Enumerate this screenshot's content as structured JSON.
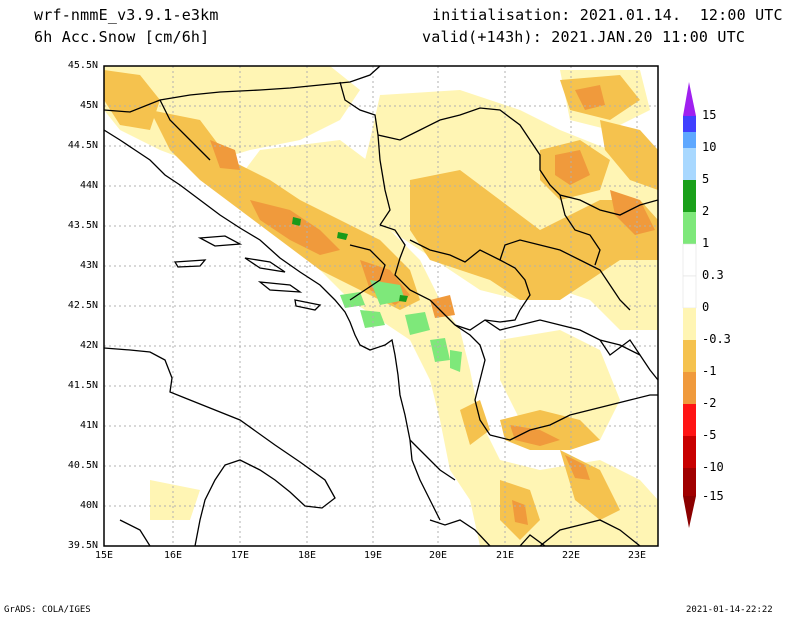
{
  "header": {
    "model": "wrf-nmmE_v3.9.1-e3km",
    "field": "6h Acc.Snow [cm/6h]",
    "init": "initialisation: 2021.01.14.  12:00 UTC",
    "valid": "valid(+143h): 2021.JAN.20 11:00 UTC"
  },
  "footer": {
    "left": "GrADS: COLA/IGES",
    "right": "2021-01-14-22:22"
  },
  "map": {
    "lat_labels": [
      "45.5N",
      "45N",
      "44.5N",
      "44N",
      "43.5N",
      "43N",
      "42.5N",
      "42N",
      "41.5N",
      "41N",
      "40.5N",
      "40N",
      "39.5N"
    ],
    "lon_labels": [
      "15E",
      "16E",
      "17E",
      "18E",
      "19E",
      "20E",
      "21E",
      "22E",
      "23E"
    ],
    "colors": {
      "pale_yellow": "#fff5b4",
      "light_orange": "#f5c24e",
      "orange": "#f09a3c",
      "green": "#7ee87a",
      "dark_green": "#1a9a1a"
    }
  },
  "colorbar": {
    "labels": [
      "15",
      "10",
      "5",
      "2",
      "1",
      "0.3",
      "0",
      "-0.3",
      "-1",
      "-2",
      "-5",
      "-10",
      "-15"
    ],
    "colors": [
      "#4040ff",
      "#5ea8ff",
      "#a8d8ff",
      "#1aa01a",
      "#7ee87a",
      "#ffffff",
      "#ffffff",
      "#fff5b4",
      "#f5c24e",
      "#f09a3c",
      "#ff1414",
      "#c80000",
      "#a00000"
    ],
    "top_arrow": "#a020f0",
    "bottom_arrow": "#8b0000"
  }
}
